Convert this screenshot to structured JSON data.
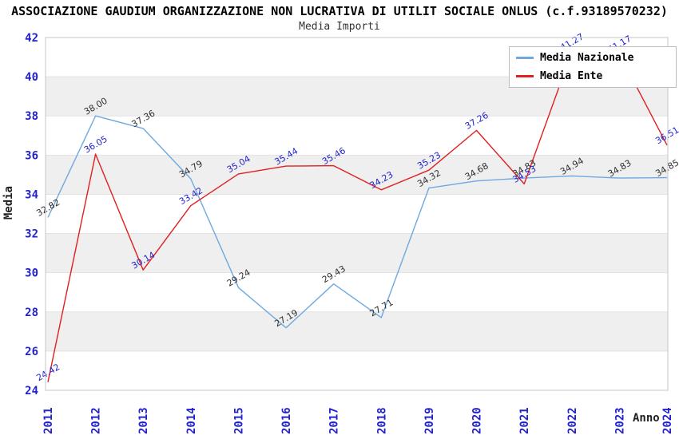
{
  "header": {
    "title": "ASSOCIAZIONE GAUDIUM ORGANIZZAZIONE NON LUCRATIVA DI UTILIT SOCIALE ONLUS (c.f.93189570232)",
    "subtitle": "Media Importi"
  },
  "legend": {
    "items": [
      {
        "label": "Media Nazionale",
        "color": "#6fa8e0"
      },
      {
        "label": "Media Ente",
        "color": "#e02020"
      }
    ]
  },
  "chart_data": {
    "type": "line",
    "title": "ASSOCIAZIONE GAUDIUM ORGANIZZAZIONE NON LUCRATIVA DI UTILIT SOCIALE ONLUS (c.f.93189570232)",
    "subtitle": "Media Importi",
    "xlabel": "Anno",
    "ylabel": "Media",
    "x": [
      2011,
      2012,
      2013,
      2014,
      2015,
      2016,
      2017,
      2018,
      2019,
      2020,
      2021,
      2022,
      2023,
      2024
    ],
    "series": [
      {
        "name": "Media Nazionale",
        "color": "#6fa8e0",
        "label_color": "#303030",
        "values": [
          32.82,
          38.0,
          37.36,
          34.79,
          29.24,
          27.19,
          29.43,
          27.71,
          34.32,
          34.68,
          34.83,
          34.94,
          34.83,
          34.85
        ]
      },
      {
        "name": "Media Ente",
        "color": "#e02020",
        "label_color": "#2323cb",
        "values": [
          24.42,
          36.05,
          30.14,
          33.42,
          35.04,
          35.44,
          35.46,
          34.23,
          35.23,
          37.26,
          34.53,
          41.27,
          41.17,
          36.51
        ]
      }
    ],
    "ylim": [
      24,
      42
    ],
    "ytick_step": 2,
    "grid": true,
    "legend_position": "top-right",
    "band_color": "#efefef",
    "gridline_color": "#e2e2e2",
    "plot_border_color": "#c6c6c6",
    "tick_label_color": "#2323cb",
    "value_decimals": 2
  }
}
